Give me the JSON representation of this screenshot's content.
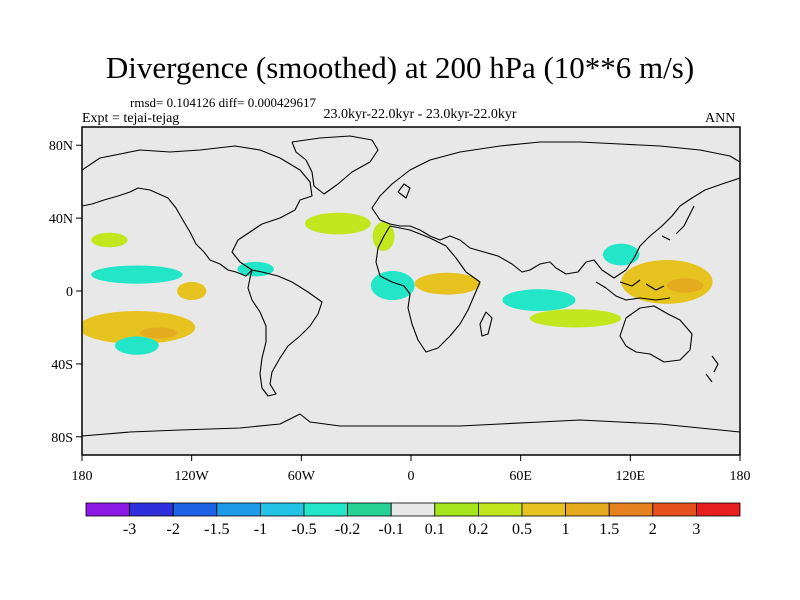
{
  "title": "Divergence (smoothed) at 200 hPa (10**6 m/s)",
  "stats": "rmsd= 0.104126 diff= 0.000429617",
  "subtitle": "23.0kyr-22.0kyr - 23.0kyr-22.0kyr",
  "left_label": "Expt = tejai-tejag",
  "right_label": "ANN",
  "axes": {
    "lon_ticks": [
      {
        "value": -180,
        "label": "180"
      },
      {
        "value": -120,
        "label": "120W"
      },
      {
        "value": -60,
        "label": "60W"
      },
      {
        "value": 0,
        "label": "0"
      },
      {
        "value": 60,
        "label": "60E"
      },
      {
        "value": 120,
        "label": "120E"
      },
      {
        "value": 180,
        "label": "180"
      }
    ],
    "lat_ticks": [
      {
        "value": 80,
        "label": "80N"
      },
      {
        "value": 40,
        "label": "40N"
      },
      {
        "value": 0,
        "label": "0"
      },
      {
        "value": -40,
        "label": "40S"
      },
      {
        "value": -80,
        "label": "80S"
      }
    ]
  },
  "colorbar": {
    "labels": [
      "-3",
      "-2",
      "-1.5",
      "-1",
      "-0.5",
      "-0.2",
      "-0.1",
      "0.1",
      "0.2",
      "0.5",
      "1",
      "1.5",
      "2",
      "3"
    ],
    "colors": [
      "#8c19e6",
      "#2f2fdc",
      "#1e62e6",
      "#1e9be6",
      "#23c3e6",
      "#23e6c8",
      "#28d297",
      "#e8e8e8",
      "#a5e61e",
      "#c3e61e",
      "#e6c31e",
      "#e6aa1e",
      "#e6821e",
      "#e6501e",
      "#e61e1e"
    ]
  },
  "chart_data": {
    "type": "contour-map",
    "variable": "Divergence (smoothed) at 200 hPa",
    "units": "10**6 m/s",
    "lon_range": [
      -180,
      180
    ],
    "lat_range": [
      -90,
      90
    ],
    "levels": [
      -3,
      -2,
      -1.5,
      -1,
      -0.5,
      -0.2,
      -0.1,
      0.1,
      0.2,
      0.5,
      1,
      1.5,
      2,
      3
    ],
    "regions": [
      {
        "name": "south-pacific-band-positive",
        "lon": -150,
        "lat": -20,
        "rx": 32,
        "ry": 9,
        "level": 0.5
      },
      {
        "name": "south-pacific-band-core",
        "lon": -138,
        "lat": -23,
        "rx": 10,
        "ry": 3,
        "level": 1
      },
      {
        "name": "south-pacific-negative",
        "lon": -150,
        "lat": -30,
        "rx": 12,
        "ry": 5,
        "level": -0.5
      },
      {
        "name": "east-pacific-negative",
        "lon": -150,
        "lat": 9,
        "rx": 25,
        "ry": 5,
        "level": -0.5
      },
      {
        "name": "east-pacific-positive",
        "lon": -120,
        "lat": 0,
        "rx": 8,
        "ry": 5,
        "level": 0.5
      },
      {
        "name": "north-pacific-positive",
        "lon": -165,
        "lat": 28,
        "rx": 10,
        "ry": 4,
        "level": 0.2
      },
      {
        "name": "central-america-negative",
        "lon": -85,
        "lat": 12,
        "rx": 10,
        "ry": 4,
        "level": -0.5
      },
      {
        "name": "north-atlantic-positive",
        "lon": -40,
        "lat": 37,
        "rx": 18,
        "ry": 6,
        "level": 0.2
      },
      {
        "name": "equatorial-atlantic-negative",
        "lon": -10,
        "lat": 3,
        "rx": 12,
        "ry": 8,
        "level": -0.5
      },
      {
        "name": "west-africa-positive",
        "lon": -15,
        "lat": 30,
        "rx": 6,
        "ry": 8,
        "level": 0.2
      },
      {
        "name": "central-africa-positive",
        "lon": 20,
        "lat": 4,
        "rx": 18,
        "ry": 6,
        "level": 0.5
      },
      {
        "name": "indian-ocean-negative",
        "lon": 70,
        "lat": -5,
        "rx": 20,
        "ry": 6,
        "level": -0.5
      },
      {
        "name": "south-indian-positive",
        "lon": 90,
        "lat": -15,
        "rx": 25,
        "ry": 5,
        "level": 0.2
      },
      {
        "name": "maritime-continent-positive",
        "lon": 140,
        "lat": 5,
        "rx": 25,
        "ry": 12,
        "level": 0.5
      },
      {
        "name": "maritime-continent-core",
        "lon": 150,
        "lat": 3,
        "rx": 10,
        "ry": 4,
        "level": 1
      },
      {
        "name": "west-pacific-negative",
        "lon": 115,
        "lat": 20,
        "rx": 10,
        "ry": 6,
        "level": -0.5
      }
    ]
  }
}
